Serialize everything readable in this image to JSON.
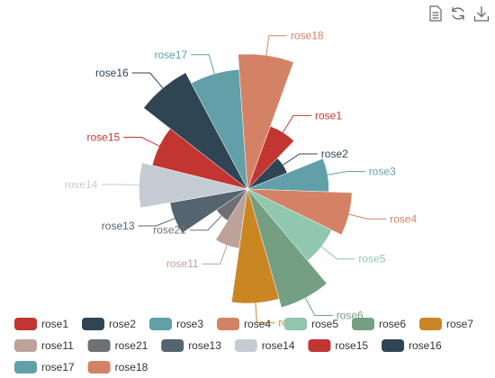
{
  "toolbox": {
    "icons": [
      "data-view-icon",
      "restore-icon",
      "save-image-icon"
    ]
  },
  "chart_data": {
    "type": "nightingale-rose",
    "radius_range": "area",
    "series": [
      {
        "name": "rose1",
        "value": 10,
        "color": "#c23531"
      },
      {
        "name": "rose2",
        "value": 4,
        "color": "#2f4554"
      },
      {
        "name": "rose3",
        "value": 15,
        "color": "#61a0a8"
      },
      {
        "name": "rose4",
        "value": 25,
        "color": "#d48265"
      },
      {
        "name": "rose5",
        "value": 20,
        "color": "#91c7ae"
      },
      {
        "name": "rose6",
        "value": 35,
        "color": "#749f83"
      },
      {
        "name": "rose7",
        "value": 30,
        "color": "#ca8622"
      },
      {
        "name": "rose11",
        "value": 8,
        "color": "#bda29a"
      },
      {
        "name": "rose21",
        "value": 3,
        "color": "#6e7074"
      },
      {
        "name": "rose13",
        "value": 14,
        "color": "#546570"
      },
      {
        "name": "rose14",
        "value": 27,
        "color": "#c4ccd3"
      },
      {
        "name": "rose15",
        "value": 22,
        "color": "#c23531"
      },
      {
        "name": "rose16",
        "value": 40,
        "color": "#2f4554"
      },
      {
        "name": "rose17",
        "value": 33,
        "color": "#61a0a8"
      },
      {
        "name": "rose18",
        "value": 42,
        "color": "#d48265"
      }
    ],
    "legend": {
      "position": "bottom",
      "items": [
        "rose1",
        "rose2",
        "rose3",
        "rose4",
        "rose5",
        "rose6",
        "rose7",
        "rose11",
        "rose21",
        "rose13",
        "rose14",
        "rose15",
        "rose16",
        "rose17",
        "rose18"
      ]
    }
  }
}
